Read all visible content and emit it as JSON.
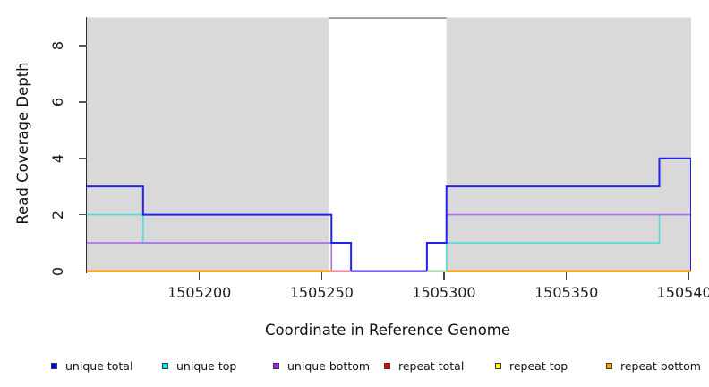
{
  "chart_data": {
    "type": "line",
    "subtype": "step-coverage",
    "title": "",
    "xlabel": "Coordinate in Reference Genome",
    "ylabel": "Read Coverage Depth",
    "xlim": [
      1505154,
      1505401
    ],
    "ylim": [
      0,
      9
    ],
    "x_ticks": [
      1505200,
      1505250,
      1505300,
      1505350,
      1505400
    ],
    "y_ticks": [
      0,
      2,
      4,
      6,
      8
    ],
    "grid": false,
    "legend_position": "bottom",
    "background_color": "#ffffff",
    "repeat_region_color": "#d9d9d9",
    "repeat_regions": [
      [
        1505154,
        1505253
      ],
      [
        1505301,
        1505401
      ]
    ],
    "gap_region": [
      1505253,
      1505301
    ],
    "gap_top_border_color": "#8a8a8a",
    "series": [
      {
        "name": "repeat total",
        "color": "#cc0000",
        "width": 1.2,
        "steps": [
          [
            1505154,
            0
          ],
          [
            1505401,
            0
          ]
        ]
      },
      {
        "name": "repeat top",
        "color": "#f5e400",
        "width": 1.2,
        "steps": [
          [
            1505154,
            0
          ],
          [
            1505401,
            0
          ]
        ]
      },
      {
        "name": "repeat bottom",
        "color": "#ff9d00",
        "width": 2,
        "steps": [
          [
            1505154,
            0
          ],
          [
            1505401,
            0
          ]
        ]
      },
      {
        "name": "unique top",
        "color": "#4adede",
        "width": 1.6,
        "steps": [
          [
            1505154,
            2
          ],
          [
            1505177,
            1
          ],
          [
            1505262,
            0
          ],
          [
            1505301,
            1
          ],
          [
            1505388,
            2
          ],
          [
            1505401,
            0
          ]
        ]
      },
      {
        "name": "unique bottom",
        "color": "#b06ee8",
        "width": 1.6,
        "steps": [
          [
            1505154,
            1
          ],
          [
            1505254,
            0
          ],
          [
            1505293,
            1
          ],
          [
            1505301,
            2
          ],
          [
            1505401,
            0
          ]
        ]
      },
      {
        "name": "unique total",
        "color": "#2222ee",
        "width": 2,
        "steps": [
          [
            1505154,
            3
          ],
          [
            1505177,
            2
          ],
          [
            1505254,
            1
          ],
          [
            1505262,
            0
          ],
          [
            1505293,
            1
          ],
          [
            1505301,
            3
          ],
          [
            1505388,
            4
          ],
          [
            1505401,
            0
          ]
        ]
      }
    ],
    "zero_line_segments": [
      {
        "from": 1505154,
        "to": 1505254,
        "color": "#ff9d00"
      },
      {
        "from": 1505254,
        "to": 1505262,
        "color": "#ee7f9e"
      },
      {
        "from": 1505262,
        "to": 1505293,
        "color": "#6b4af0"
      },
      {
        "from": 1505293,
        "to": 1505301,
        "color": "#9fd9af"
      },
      {
        "from": 1505301,
        "to": 1505401,
        "color": "#ff9d00"
      }
    ]
  },
  "legend": {
    "items": [
      {
        "label": "unique total",
        "color": "#0000ee"
      },
      {
        "label": "unique top",
        "color": "#00e5e5"
      },
      {
        "label": "unique bottom",
        "color": "#a020f0"
      },
      {
        "label": "repeat total",
        "color": "#ee0000"
      },
      {
        "label": "repeat top",
        "color": "#ffff00"
      },
      {
        "label": "repeat bottom",
        "color": "#ff9d00"
      }
    ]
  }
}
